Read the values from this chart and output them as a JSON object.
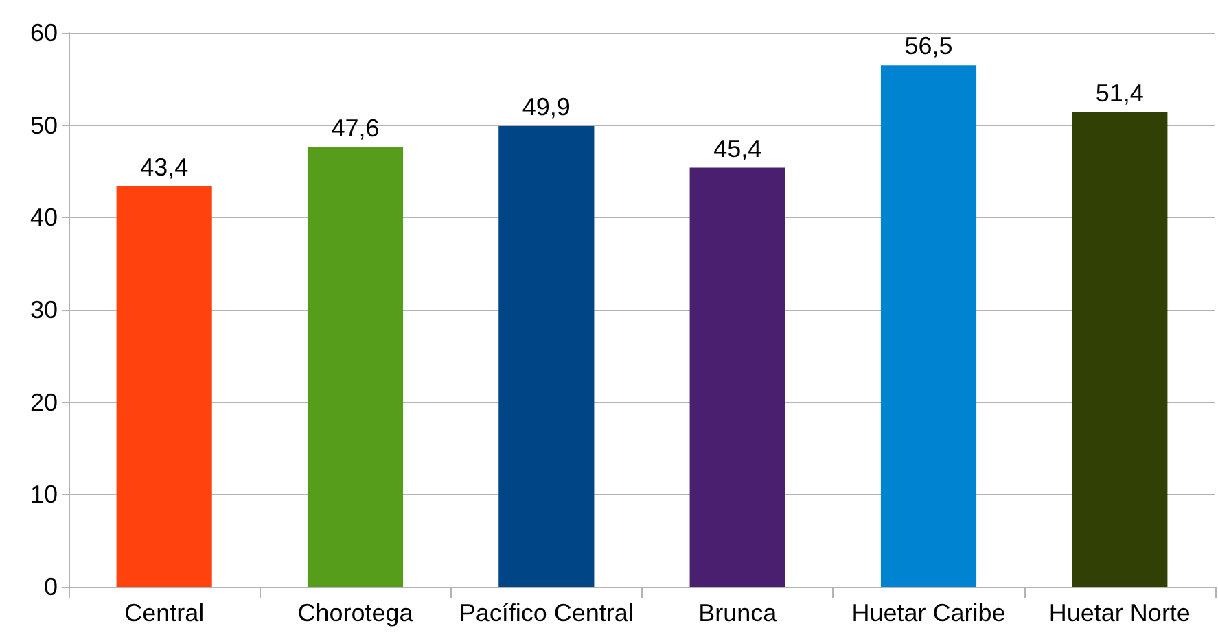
{
  "chart_data": {
    "type": "bar",
    "categories": [
      "Central",
      "Chorotega",
      "Pacífico Central",
      "Brunca",
      "Huetar Caribe",
      "Huetar Norte"
    ],
    "values": [
      43.4,
      47.6,
      49.9,
      45.4,
      56.5,
      51.4
    ],
    "value_labels": [
      "43,4",
      "47,6",
      "49,9",
      "45,4",
      "56,5",
      "51,4"
    ],
    "colors": [
      "#ff420e",
      "#579d1c",
      "#004586",
      "#4b1f6f",
      "#0084d1",
      "#314004"
    ],
    "ylim": [
      0,
      60
    ],
    "yticks": [
      0,
      10,
      20,
      30,
      40,
      50,
      60
    ],
    "grid": "y"
  }
}
